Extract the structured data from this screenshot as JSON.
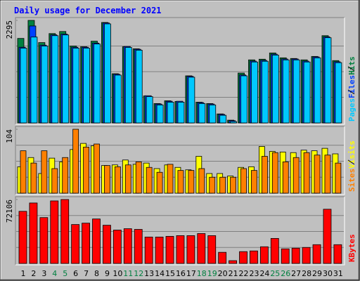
{
  "title": "Daily usage for December 2021",
  "chart_data": [
    {
      "type": "bar",
      "ylim": [
        0,
        2295
      ],
      "yticks": [
        2295
      ],
      "series": [
        {
          "name": "Hits",
          "color": "#008040",
          "values": [
            1891,
            2295,
            1798,
            2000,
            2046,
            1721,
            1705,
            1829,
            2248,
            1101,
            1705,
            1659,
            605,
            434,
            496,
            481,
            1054,
            465,
            434,
            202,
            62,
            1116,
            1411,
            1426,
            1566,
            1457,
            1442,
            1411,
            1488,
            1953,
            1395
          ]
        },
        {
          "name": "Files",
          "color": "#0040ff",
          "values": [
            1694,
            2170,
            1741,
            1973,
            1989,
            1694,
            1694,
            1787,
            2237,
            1090,
            1710,
            1648,
            609,
            423,
            485,
            485,
            1043,
            454,
            423,
            191,
            51,
            1074,
            1384,
            1400,
            1539,
            1431,
            1431,
            1384,
            1477,
            1927,
            1369
          ]
        },
        {
          "name": "Pages",
          "color": "#00c8ff",
          "values": [
            1674,
            1922,
            1721,
            1953,
            1969,
            1674,
            1674,
            1767,
            2217,
            1070,
            1690,
            1628,
            589,
            403,
            465,
            465,
            1023,
            434,
            403,
            171,
            31,
            1054,
            1364,
            1380,
            1519,
            1411,
            1411,
            1364,
            1457,
            1907,
            1349
          ]
        }
      ]
    },
    {
      "type": "bar",
      "ylim": [
        0,
        104
      ],
      "yticks": [
        104
      ],
      "series": [
        {
          "name": "Visits",
          "color": "#ffff00",
          "values": [
            43,
            58,
            32,
            57,
            51,
            71,
            81,
            77,
            45,
            46,
            54,
            47,
            49,
            40,
            46,
            42,
            38,
            60,
            32,
            32,
            28,
            42,
            43,
            76,
            68,
            67,
            66,
            70,
            69,
            73,
            64
          ]
        },
        {
          "name": "Sites",
          "color": "#ff8000",
          "values": [
            69,
            49,
            69,
            40,
            58,
            104,
            75,
            80,
            45,
            43,
            46,
            51,
            42,
            34,
            47,
            37,
            37,
            40,
            26,
            26,
            26,
            40,
            37,
            60,
            66,
            51,
            58,
            66,
            62,
            62,
            49
          ]
        }
      ]
    },
    {
      "type": "bar",
      "ylim": [
        0,
        72106
      ],
      "yticks": [
        72106
      ],
      "categories": [
        "1",
        "2",
        "3",
        "4",
        "5",
        "6",
        "7",
        "8",
        "9",
        "10",
        "11",
        "12",
        "13",
        "14",
        "15",
        "16",
        "17",
        "18",
        "19",
        "20",
        "21",
        "22",
        "23",
        "24",
        "25",
        "26",
        "27",
        "28",
        "29",
        "30",
        "31"
      ],
      "category_colors": [
        "#000000",
        "#000000",
        "#000000",
        "#008040",
        "#008040",
        "#000000",
        "#000000",
        "#000000",
        "#000000",
        "#000000",
        "#008040",
        "#008040",
        "#000000",
        "#000000",
        "#000000",
        "#000000",
        "#000000",
        "#008040",
        "#008040",
        "#000000",
        "#000000",
        "#000000",
        "#000000",
        "#000000",
        "#008040",
        "#008040",
        "#000000",
        "#000000",
        "#000000",
        "#000000",
        "#000000"
      ],
      "series": [
        {
          "name": "KBytes",
          "color": "#ff0000",
          "values": [
            58785,
            68190,
            51731,
            70542,
            72106,
            43893,
            45460,
            50163,
            43109,
            37622,
            39190,
            38406,
            29784,
            29784,
            30568,
            31352,
            31352,
            33703,
            31352,
            12541,
            3135,
            13324,
            14108,
            18811,
            28216,
            16459,
            17243,
            18027,
            21162,
            61136,
            21162
          ]
        }
      ]
    }
  ]
}
